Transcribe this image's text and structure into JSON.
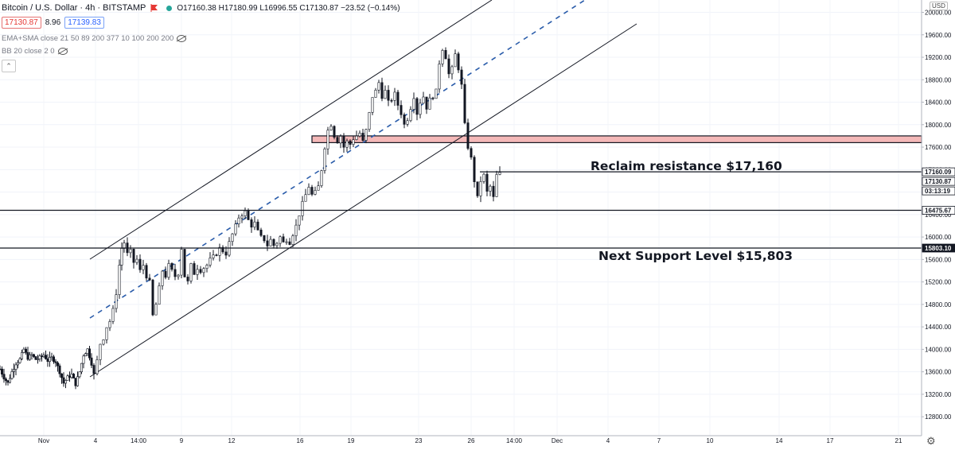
{
  "header": {
    "symbol": "Bitcoin / U.S. Dollar · 4h · BITSTAMP",
    "ohlc": "O17160.38 H17180.99 L16996.55 C17130.87 −23.52 (−0.14%)",
    "sell_price": "17130.87",
    "spread": "8.96",
    "buy_price": "17139.83"
  },
  "indicators": [
    "EMA+SMA close 21 50 89 200 377 10 100 200 200",
    "BB 20 close 2 0"
  ],
  "collapse_icon": "chevron-up-icon",
  "currency": "USD",
  "settings_icon": "gear-icon",
  "colors": {
    "up": "#131722",
    "down": "#131722",
    "zone_fill": "#f4b8b8",
    "blue_dash": "#2a5caa",
    "sell": "#e53935",
    "buy": "#2962ff"
  },
  "chart_data": {
    "type": "candlestick",
    "timeframe": "4h",
    "y_axis": {
      "min": 12500,
      "max": 20100,
      "ticks": [
        "20000.00",
        "19600.00",
        "19200.00",
        "18800.00",
        "18400.00",
        "18000.00",
        "17600.00",
        "17200.00",
        "16800.00",
        "16400.00",
        "16000.00",
        "15600.00",
        "15200.00",
        "14800.00",
        "14400.00",
        "14000.00",
        "13600.00",
        "13200.00",
        "12800.00"
      ]
    },
    "x_axis": {
      "ticks": [
        "Nov",
        "4",
        "14:00",
        "9",
        "12",
        "16",
        "19",
        "23",
        "26",
        "14:00",
        "Dec",
        "4",
        "7",
        "10",
        "14",
        "17",
        "21"
      ]
    },
    "price_tags": [
      {
        "label": "17160.09",
        "value": 17160.09,
        "style": "light"
      },
      {
        "label": "17130.87",
        "value": 17130.87,
        "style": "light"
      },
      {
        "label": "03:13:19",
        "value": 16960,
        "style": "light"
      },
      {
        "label": "16475.67",
        "value": 16475.67,
        "style": "light"
      },
      {
        "label": "15803.10",
        "value": 15803.1,
        "style": "dark"
      }
    ],
    "horizontal_levels": [
      17160.09,
      16475.67,
      15803.1
    ],
    "resistance_zone": {
      "from": 17680,
      "to": 17800
    },
    "annotations": [
      {
        "text": "Reclaim resistance $17,160",
        "value": 17160
      },
      {
        "text": "Next Support Level $15,803",
        "value": 15803
      }
    ],
    "close_path": [
      [
        0,
        13650
      ],
      [
        5,
        13500
      ],
      [
        10,
        13400
      ],
      [
        15,
        13600
      ],
      [
        20,
        13750
      ],
      [
        25,
        13820
      ],
      [
        30,
        14000
      ],
      [
        35,
        13850
      ],
      [
        40,
        13900
      ],
      [
        45,
        13820
      ],
      [
        50,
        13850
      ],
      [
        55,
        13900
      ],
      [
        60,
        13800
      ],
      [
        65,
        13850
      ],
      [
        70,
        13780
      ],
      [
        75,
        13600
      ],
      [
        80,
        13400
      ],
      [
        85,
        13500
      ],
      [
        90,
        13550
      ],
      [
        95,
        13380
      ],
      [
        100,
        13600
      ],
      [
        105,
        13900
      ],
      [
        110,
        14000
      ],
      [
        115,
        13750
      ],
      [
        118,
        13550
      ],
      [
        122,
        13800
      ],
      [
        126,
        14100
      ],
      [
        130,
        14200
      ],
      [
        134,
        14400
      ],
      [
        138,
        14500
      ],
      [
        142,
        14700
      ],
      [
        146,
        15000
      ],
      [
        150,
        15500
      ],
      [
        153,
        15800
      ],
      [
        156,
        15900
      ],
      [
        160,
        15700
      ],
      [
        164,
        15750
      ],
      [
        168,
        15550
      ],
      [
        172,
        15600
      ],
      [
        176,
        15400
      ],
      [
        180,
        15500
      ],
      [
        184,
        15300
      ],
      [
        188,
        15200
      ],
      [
        192,
        14600
      ],
      [
        196,
        14800
      ],
      [
        200,
        15100
      ],
      [
        204,
        15400
      ],
      [
        208,
        15300
      ],
      [
        212,
        15500
      ],
      [
        216,
        15400
      ],
      [
        220,
        15300
      ],
      [
        224,
        15350
      ],
      [
        228,
        15800
      ],
      [
        232,
        15300
      ],
      [
        236,
        15200
      ],
      [
        240,
        15500
      ],
      [
        244,
        15350
      ],
      [
        248,
        15450
      ],
      [
        252,
        15400
      ],
      [
        256,
        15450
      ],
      [
        260,
        15500
      ],
      [
        264,
        15600
      ],
      [
        268,
        15650
      ],
      [
        272,
        15700
      ],
      [
        276,
        15800
      ],
      [
        280,
        15750
      ],
      [
        284,
        15700
      ],
      [
        288,
        15900
      ],
      [
        292,
        16050
      ],
      [
        296,
        16200
      ],
      [
        300,
        16350
      ],
      [
        304,
        16400
      ],
      [
        308,
        16450
      ],
      [
        312,
        16300
      ],
      [
        316,
        16200
      ],
      [
        320,
        16250
      ],
      [
        324,
        16100
      ],
      [
        328,
        16000
      ],
      [
        332,
        15950
      ],
      [
        336,
        15850
      ],
      [
        340,
        15950
      ],
      [
        344,
        15850
      ],
      [
        348,
        15900
      ],
      [
        352,
        16000
      ],
      [
        356,
        15900
      ],
      [
        360,
        15950
      ],
      [
        364,
        15900
      ],
      [
        368,
        16050
      ],
      [
        372,
        16200
      ],
      [
        376,
        16400
      ],
      [
        380,
        16600
      ],
      [
        384,
        16750
      ],
      [
        388,
        16900
      ],
      [
        392,
        16750
      ],
      [
        396,
        16800
      ],
      [
        400,
        16900
      ],
      [
        404,
        17200
      ],
      [
        408,
        17600
      ],
      [
        412,
        17900
      ],
      [
        416,
        18000
      ],
      [
        420,
        17800
      ],
      [
        424,
        17700
      ],
      [
        428,
        17800
      ],
      [
        432,
        17600
      ],
      [
        436,
        17700
      ],
      [
        440,
        17650
      ],
      [
        444,
        17750
      ],
      [
        448,
        17800
      ],
      [
        452,
        17850
      ],
      [
        456,
        17700
      ],
      [
        460,
        17900
      ],
      [
        464,
        18200
      ],
      [
        468,
        18500
      ],
      [
        472,
        18600
      ],
      [
        476,
        18750
      ],
      [
        480,
        18500
      ],
      [
        484,
        18600
      ],
      [
        488,
        18400
      ],
      [
        492,
        18450
      ],
      [
        496,
        18550
      ],
      [
        500,
        18350
      ],
      [
        504,
        18200
      ],
      [
        508,
        18000
      ],
      [
        512,
        18100
      ],
      [
        516,
        18300
      ],
      [
        520,
        18500
      ],
      [
        524,
        18200
      ],
      [
        528,
        18400
      ],
      [
        532,
        18500
      ],
      [
        536,
        18300
      ],
      [
        540,
        18450
      ],
      [
        544,
        18500
      ],
      [
        548,
        18600
      ],
      [
        552,
        19100
      ],
      [
        556,
        19350
      ],
      [
        560,
        19200
      ],
      [
        564,
        18900
      ],
      [
        568,
        19000
      ],
      [
        572,
        19250
      ],
      [
        576,
        19000
      ],
      [
        580,
        18700
      ],
      [
        584,
        18000
      ],
      [
        588,
        17600
      ],
      [
        592,
        17400
      ],
      [
        596,
        17000
      ],
      [
        600,
        16700
      ],
      [
        604,
        17000
      ],
      [
        608,
        17100
      ],
      [
        612,
        16800
      ],
      [
        616,
        16900
      ],
      [
        620,
        16700
      ],
      [
        624,
        17100
      ],
      [
        628,
        17130
      ]
    ]
  }
}
